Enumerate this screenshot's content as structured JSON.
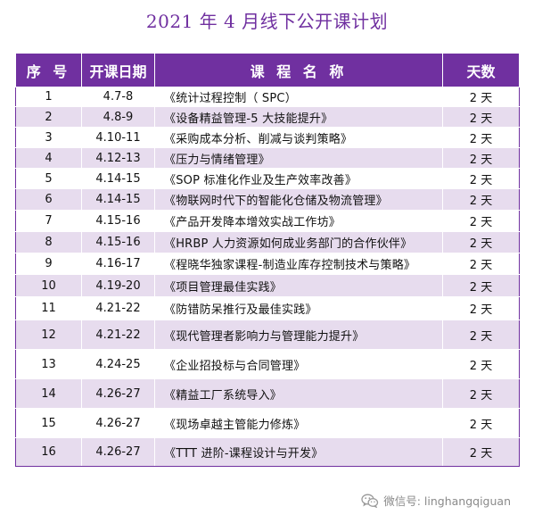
{
  "title": "2021 年 4 月线下公开课计划",
  "table": {
    "headers": {
      "no": "序 号",
      "date": "开课日期",
      "name": "课 程 名 称",
      "days": "天数"
    },
    "rows": [
      {
        "no": "1",
        "date": "4.7-8",
        "name": "《统计过程控制（ SPC）",
        "days": "2 天"
      },
      {
        "no": "2",
        "date": "4.8-9",
        "name": "《设备精益管理-5 大技能提升》",
        "days": "2 天"
      },
      {
        "no": "3",
        "date": "4.10-11",
        "name": "《采购成本分析、削减与谈判策略》",
        "days": "2 天"
      },
      {
        "no": "4",
        "date": "4.12-13",
        "name": "《压力与情绪管理》",
        "days": "2 天"
      },
      {
        "no": "5",
        "date": "4.14-15",
        "name": "《SOP 标准化作业及生产效率改善》",
        "days": "2 天"
      },
      {
        "no": "6",
        "date": "4.14-15",
        "name": "《物联网时代下的智能化仓储及物流管理》",
        "days": "2 天"
      },
      {
        "no": "7",
        "date": "4.15-16",
        "name": "《产品开发降本增效实战工作坊》",
        "days": "2 天"
      },
      {
        "no": "8",
        "date": "4.15-16",
        "name": "《HRBP 人力资源如何成业务部门的合作伙伴》",
        "days": "2 天"
      },
      {
        "no": "9",
        "date": "4.16-17",
        "name": "《程晓华独家课程-制造业库存控制技术与策略》",
        "days": "2 天"
      },
      {
        "no": "10",
        "date": "4.19-20",
        "name": "《项目管理最佳实践》",
        "days": "2 天"
      },
      {
        "no": "11",
        "date": "4.21-22",
        "name": "《防错防呆推行及最佳实践》",
        "days": "2 天"
      },
      {
        "no": "12",
        "date": "4.21-22",
        "name": "《现代管理者影响力与管理能力提升》",
        "days": "2 天"
      },
      {
        "no": "13",
        "date": "4.24-25",
        "name": "《企业招投标与合同管理》",
        "days": "2 天"
      },
      {
        "no": "14",
        "date": "4.26-27",
        "name": "《精益工厂系统导入》",
        "days": "2 天"
      },
      {
        "no": "15",
        "date": "4.26-27",
        "name": "《现场卓越主管能力修炼》",
        "days": "2 天"
      },
      {
        "no": "16",
        "date": "4.26-27",
        "name": "《TTT 进阶-课程设计与开发》",
        "days": "2 天"
      }
    ]
  },
  "watermark": {
    "icon": "wechat-icon",
    "text": "微信号: linghangqiguan"
  },
  "colors": {
    "accent": "#7030a0",
    "band": "#e7dcee",
    "text": "#111111",
    "watermark": "#8a8a8a"
  }
}
